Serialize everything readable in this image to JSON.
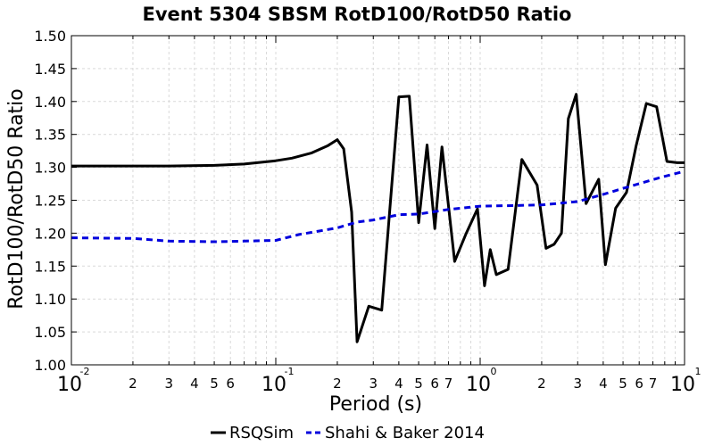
{
  "chart_data": {
    "type": "line",
    "title": "Event 5304 SBSM RotD100/RotD50 Ratio",
    "xlabel": "Period (s)",
    "ylabel": "RotD100/RotD50 Ratio",
    "xscale": "log",
    "xlim": [
      0.01,
      10
    ],
    "ylim": [
      1.0,
      1.5
    ],
    "grid": true,
    "legend_position": "bottom",
    "yticks": [
      "1.00",
      "1.05",
      "1.10",
      "1.15",
      "1.20",
      "1.25",
      "1.30",
      "1.35",
      "1.40",
      "1.45",
      "1.50"
    ],
    "xticks_major": [
      {
        "base": "10",
        "exp": "-2",
        "value": 0.01
      },
      {
        "base": "10",
        "exp": "-1",
        "value": 0.1
      },
      {
        "base": "10",
        "exp": "0",
        "value": 1
      },
      {
        "base": "10",
        "exp": "1",
        "value": 10
      }
    ],
    "xticks_minor_labels": [
      "2",
      "3",
      "4",
      "5",
      "6",
      "2",
      "3",
      "4",
      "5",
      "6",
      "7",
      "2",
      "3",
      "4",
      "5",
      "6",
      "7",
      "2",
      "3",
      "4",
      "5",
      "6",
      "7"
    ],
    "series": [
      {
        "name": "RSQSim",
        "color": "#000000",
        "style": "solid",
        "x": [
          0.01,
          0.02,
          0.03,
          0.05,
          0.07,
          0.1,
          0.12,
          0.15,
          0.18,
          0.2,
          0.215,
          0.235,
          0.25,
          0.285,
          0.33,
          0.4,
          0.45,
          0.5,
          0.55,
          0.6,
          0.65,
          0.75,
          0.85,
          0.97,
          1.05,
          1.12,
          1.2,
          1.37,
          1.6,
          1.9,
          2.1,
          2.3,
          2.5,
          2.7,
          2.95,
          3.3,
          3.8,
          4.1,
          4.6,
          5.2,
          5.8,
          6.5,
          7.3,
          8.2,
          9.2,
          10
        ],
        "values": [
          1.302,
          1.302,
          1.302,
          1.303,
          1.305,
          1.31,
          1.314,
          1.322,
          1.333,
          1.342,
          1.328,
          1.232,
          1.035,
          1.089,
          1.083,
          1.407,
          1.408,
          1.216,
          1.334,
          1.207,
          1.331,
          1.157,
          1.198,
          1.237,
          1.12,
          1.175,
          1.137,
          1.145,
          1.312,
          1.273,
          1.177,
          1.183,
          1.2,
          1.374,
          1.411,
          1.245,
          1.282,
          1.152,
          1.238,
          1.262,
          1.333,
          1.397,
          1.392,
          1.309,
          1.307,
          1.307
        ]
      },
      {
        "name": "Shahi & Baker 2014",
        "color": "#0000dd",
        "style": "dashed",
        "x": [
          0.01,
          0.02,
          0.03,
          0.05,
          0.07,
          0.1,
          0.13,
          0.2,
          0.25,
          0.3,
          0.4,
          0.5,
          0.7,
          1.0,
          1.5,
          2.0,
          3.0,
          4.0,
          5.0,
          7.5,
          10.0
        ],
        "values": [
          1.193,
          1.192,
          1.188,
          1.187,
          1.188,
          1.189,
          1.198,
          1.208,
          1.217,
          1.22,
          1.228,
          1.229,
          1.236,
          1.241,
          1.242,
          1.243,
          1.248,
          1.259,
          1.268,
          1.284,
          1.294
        ]
      }
    ]
  }
}
